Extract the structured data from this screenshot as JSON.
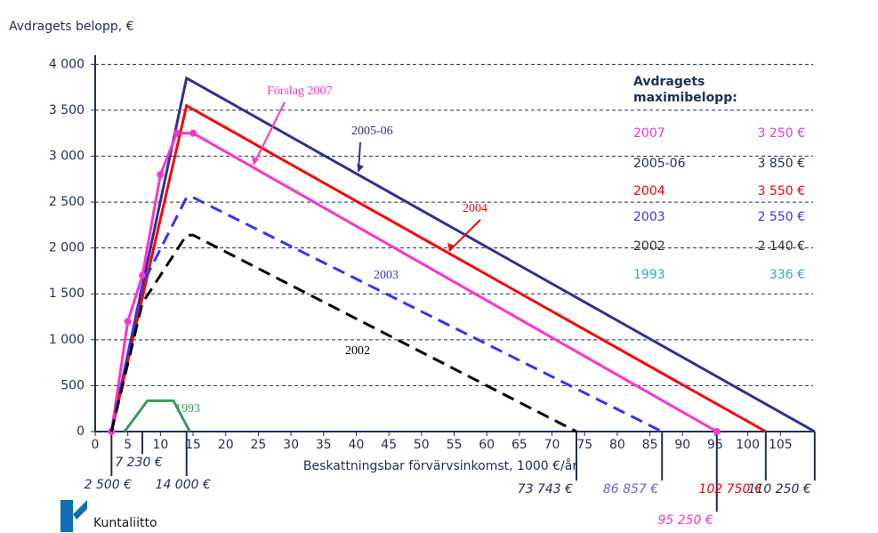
{
  "chart_data": {
    "type": "line",
    "title": "Avdragets belopp, €",
    "x_label": "Beskattningsbar förvärvsinkomst, 1000 €/år",
    "xlim": [
      0,
      110
    ],
    "ylim": [
      0,
      4100
    ],
    "xticks": [
      0,
      5,
      10,
      15,
      20,
      25,
      30,
      35,
      40,
      45,
      50,
      55,
      60,
      65,
      70,
      75,
      80,
      85,
      90,
      95,
      100,
      105
    ],
    "yticks": [
      0,
      500,
      {
        "value": 1000,
        "label": "1 000"
      },
      {
        "value": 1500,
        "label": "1 500"
      },
      {
        "value": 2000,
        "label": "2 000"
      },
      {
        "value": 2500,
        "label": "2 500"
      },
      {
        "value": 3000,
        "label": "3 000"
      },
      {
        "value": 3500,
        "label": "3 500"
      },
      {
        "value": 4000,
        "label": "4 000"
      }
    ],
    "grid": true,
    "series": [
      {
        "name": "2005-06",
        "color": "#2e3192",
        "x": [
          2.5,
          14,
          110.25
        ],
        "values": [
          0,
          3850,
          0
        ]
      },
      {
        "name": "2004",
        "color": "#ff0000",
        "x": [
          2.5,
          14,
          102.75
        ],
        "values": [
          0,
          3550,
          0
        ]
      },
      {
        "name": "Förslag 2007",
        "color": "#ff33cc",
        "marker": true,
        "x": [
          2.5,
          5,
          7.23,
          10,
          12.5,
          15,
          95.25
        ],
        "values": [
          0,
          1200,
          1700,
          2800,
          3250,
          3250,
          0
        ]
      },
      {
        "name": "2003",
        "color": "#3333ff",
        "dashed": true,
        "x": [
          2.5,
          7.23,
          14,
          15,
          86.857
        ],
        "values": [
          0,
          1600,
          2550,
          2550,
          0
        ]
      },
      {
        "name": "2002",
        "color": "#000000",
        "dashed": true,
        "x": [
          2.5,
          7.23,
          14,
          15,
          73.743
        ],
        "values": [
          0,
          1400,
          2140,
          2140,
          0
        ]
      },
      {
        "name": "1993",
        "color": "#3a9a5c",
        "x": [
          4.5,
          8,
          12,
          14.5
        ],
        "values": [
          0,
          336,
          336,
          0
        ]
      }
    ],
    "reference_lines": [
      {
        "value": 2.5,
        "label": "2 500 €",
        "color": "#1f2d5c"
      },
      {
        "value": 7.23,
        "label": "7 230 €",
        "color": "#1f2d5c"
      },
      {
        "value": 14,
        "label": "14 000 €",
        "color": "#1f2d5c"
      },
      {
        "value": 73.743,
        "label": "73 743 €",
        "color": "#1f2d5c"
      },
      {
        "value": 86.857,
        "label": "86 857 €",
        "color": "#6666cc"
      },
      {
        "value": 95.25,
        "label": "95 250 €",
        "color": "#ff33cc"
      },
      {
        "value": 102.75,
        "label": "102 750 €",
        "color": "#ff0000"
      },
      {
        "value": 110.25,
        "label": "110 250 €",
        "color": "#1f2d5c"
      }
    ],
    "legend_title": [
      "Avdragets",
      "maximibelopp:"
    ],
    "legend_rows": [
      {
        "year": "2007",
        "amount": "3 250 €",
        "color": "#ff33cc"
      },
      {
        "year": "2005-06",
        "amount": "3 850 €",
        "color": "#1f2d5c"
      },
      {
        "year": "2004",
        "amount": "3 550 €",
        "color": "#ff0000"
      },
      {
        "year": "2003",
        "amount": "2 550 €",
        "color": "#3333ff"
      },
      {
        "year": "2002",
        "amount": "2 140 €",
        "color": "#333333"
      },
      {
        "year": "1993",
        "amount": "336 €",
        "color": "#33a6d6"
      }
    ],
    "logo": "Kuntaliitto"
  }
}
